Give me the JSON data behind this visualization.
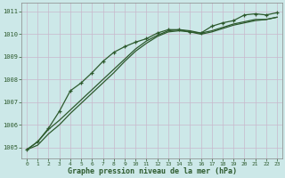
{
  "xlabel": "Graphe pression niveau de la mer (hPa)",
  "background_color": "#cce8e8",
  "grid_color": "#c8b8cc",
  "line_color": "#2d5a2d",
  "xlim": [
    -0.5,
    23.5
  ],
  "ylim": [
    1004.5,
    1011.4
  ],
  "yticks": [
    1005,
    1006,
    1007,
    1008,
    1009,
    1010,
    1011
  ],
  "xticks": [
    0,
    1,
    2,
    3,
    4,
    5,
    6,
    7,
    8,
    9,
    10,
    11,
    12,
    13,
    14,
    15,
    16,
    17,
    18,
    19,
    20,
    21,
    22,
    23
  ],
  "line1_x": [
    0,
    1,
    2,
    3,
    4,
    5,
    6,
    7,
    8,
    9,
    10,
    11,
    12,
    13,
    14,
    15,
    16,
    17,
    18,
    19,
    20,
    21,
    22,
    23
  ],
  "line1_y": [
    1004.9,
    1005.25,
    1005.8,
    1006.2,
    1006.65,
    1007.1,
    1007.55,
    1008.0,
    1008.45,
    1008.9,
    1009.35,
    1009.7,
    1009.95,
    1010.15,
    1010.2,
    1010.15,
    1010.05,
    1010.15,
    1010.3,
    1010.45,
    1010.55,
    1010.65,
    1010.65,
    1010.75
  ],
  "line2_x": [
    0,
    1,
    2,
    3,
    4,
    5,
    6,
    7,
    8,
    9,
    10,
    11,
    12,
    13,
    14,
    15,
    16,
    17,
    18,
    19,
    20,
    21,
    22,
    23
  ],
  "line2_y": [
    1004.9,
    1005.1,
    1005.6,
    1006.0,
    1006.5,
    1006.95,
    1007.4,
    1007.85,
    1008.3,
    1008.8,
    1009.25,
    1009.6,
    1009.9,
    1010.1,
    1010.15,
    1010.1,
    1010.0,
    1010.1,
    1010.25,
    1010.4,
    1010.5,
    1010.6,
    1010.65,
    1010.75
  ],
  "line3_x": [
    0,
    1,
    2,
    3,
    4,
    5,
    6,
    7,
    8,
    9,
    10,
    11,
    12,
    13,
    14,
    15,
    16,
    17,
    18,
    19,
    20,
    21,
    22,
    23
  ],
  "line3_y": [
    1004.9,
    1005.25,
    1005.85,
    1006.6,
    1007.5,
    1007.85,
    1008.3,
    1008.8,
    1009.2,
    1009.45,
    1009.65,
    1009.8,
    1010.05,
    1010.2,
    1010.2,
    1010.1,
    1010.05,
    1010.35,
    1010.5,
    1010.6,
    1010.85,
    1010.9,
    1010.85,
    1010.95
  ]
}
